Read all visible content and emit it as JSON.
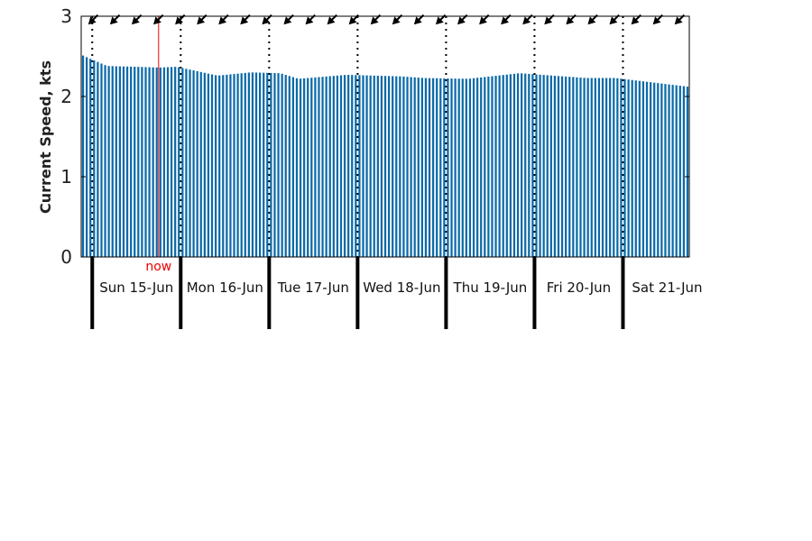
{
  "chart_data": {
    "type": "bar",
    "ylabel": "Current Speed, kts",
    "ylim": [
      0,
      3
    ],
    "yticks": [
      "0",
      "1",
      "2",
      "3"
    ],
    "x_start": "2025-06-14T21:00",
    "x_end": "2025-06-21T18:00",
    "interval_hours": 1,
    "day_boundaries": [
      "2025-06-15T00:00",
      "2025-06-16T00:00",
      "2025-06-17T00:00",
      "2025-06-18T00:00",
      "2025-06-19T00:00",
      "2025-06-20T00:00",
      "2025-06-21T00:00"
    ],
    "day_labels": [
      "Sun 15-Jun",
      "Mon 16-Jun",
      "Tue 17-Jun",
      "Wed 18-Jun",
      "Thu 19-Jun",
      "Fri 20-Jun",
      "Sat 21-Jun"
    ],
    "now_time": "2025-06-15T18:00",
    "now_label": "now",
    "speed_keypoints": [
      {
        "t": "2025-06-14T21:00",
        "v": 2.52
      },
      {
        "t": "2025-06-15T01:00",
        "v": 2.44
      },
      {
        "t": "2025-06-15T04:00",
        "v": 2.38
      },
      {
        "t": "2025-06-15T12:00",
        "v": 2.37
      },
      {
        "t": "2025-06-15T18:00",
        "v": 2.36
      },
      {
        "t": "2025-06-15T23:00",
        "v": 2.37
      },
      {
        "t": "2025-06-16T03:00",
        "v": 2.33
      },
      {
        "t": "2025-06-16T10:00",
        "v": 2.26
      },
      {
        "t": "2025-06-16T19:00",
        "v": 2.3
      },
      {
        "t": "2025-06-17T03:00",
        "v": 2.29
      },
      {
        "t": "2025-06-17T08:00",
        "v": 2.22
      },
      {
        "t": "2025-06-17T21:00",
        "v": 2.27
      },
      {
        "t": "2025-06-18T12:00",
        "v": 2.25
      },
      {
        "t": "2025-06-18T18:00",
        "v": 2.23
      },
      {
        "t": "2025-06-19T06:00",
        "v": 2.22
      },
      {
        "t": "2025-06-19T20:00",
        "v": 2.29
      },
      {
        "t": "2025-06-20T02:00",
        "v": 2.27
      },
      {
        "t": "2025-06-20T14:00",
        "v": 2.23
      },
      {
        "t": "2025-06-20T22:00",
        "v": 2.23
      },
      {
        "t": "2025-06-21T18:00",
        "v": 2.12
      }
    ],
    "direction_marker_icon": "direction-arrow-icon",
    "direction_marker_count": 28,
    "colors": {
      "bars": "#0b6aa8",
      "now_line": "#ee0000",
      "axis": "#000000"
    }
  }
}
